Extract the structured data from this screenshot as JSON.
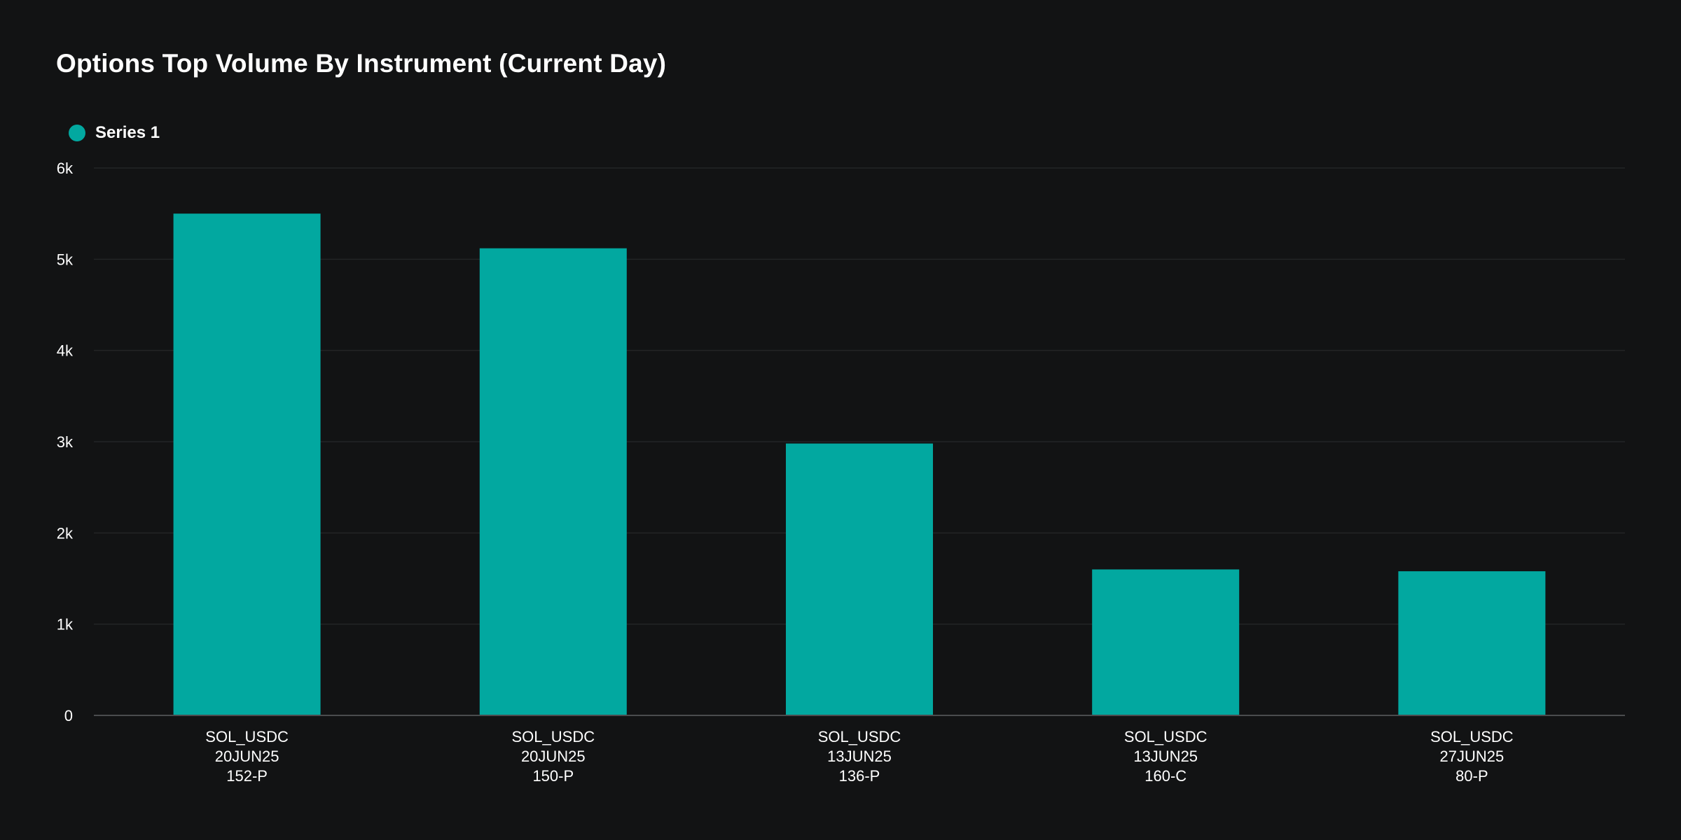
{
  "chart_data": {
    "type": "bar",
    "title": "Options Top Volume By Instrument (Current Day)",
    "xlabel": "",
    "ylabel": "",
    "ylim": [
      0,
      6000
    ],
    "yticks": [
      {
        "value": 0,
        "label": "0"
      },
      {
        "value": 1000,
        "label": "1k"
      },
      {
        "value": 2000,
        "label": "2k"
      },
      {
        "value": 3000,
        "label": "3k"
      },
      {
        "value": 4000,
        "label": "4k"
      },
      {
        "value": 5000,
        "label": "5k"
      },
      {
        "value": 6000,
        "label": "6k"
      }
    ],
    "categories": [
      [
        "SOL_USDC",
        "20JUN25",
        "152-P"
      ],
      [
        "SOL_USDC",
        "20JUN25",
        "150-P"
      ],
      [
        "SOL_USDC",
        "13JUN25",
        "136-P"
      ],
      [
        "SOL_USDC",
        "13JUN25",
        "160-C"
      ],
      [
        "SOL_USDC",
        "27JUN25",
        "80-P"
      ]
    ],
    "series": [
      {
        "name": "Series 1",
        "color": "#02a8a0",
        "values": [
          5500,
          5120,
          2980,
          1600,
          1580
        ]
      }
    ],
    "grid": true,
    "legend_position": "top-left"
  }
}
